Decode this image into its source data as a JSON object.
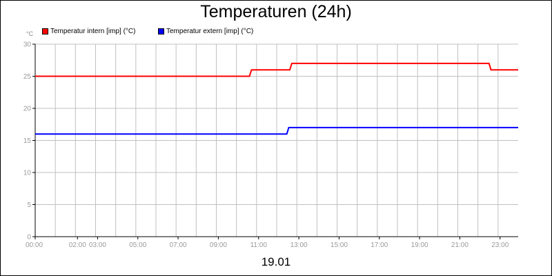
{
  "chart_data": {
    "type": "line",
    "title": "Temperaturen (24h)",
    "y_unit": "°C",
    "xlabel": "19.01",
    "ylim": [
      0,
      30
    ],
    "yticks": [
      0,
      5,
      10,
      15,
      20,
      25,
      30
    ],
    "xlim": [
      0,
      24
    ],
    "xticks": [
      {
        "x": 0,
        "label": "00:00"
      },
      {
        "x": 2.1,
        "label": "02:00"
      },
      {
        "x": 3.1,
        "label": "03:00"
      },
      {
        "x": 5.1,
        "label": "05:00"
      },
      {
        "x": 7.1,
        "label": "07:00"
      },
      {
        "x": 9.1,
        "label": "09:00"
      },
      {
        "x": 11.1,
        "label": "11:00"
      },
      {
        "x": 13.1,
        "label": "13:00"
      },
      {
        "x": 15.1,
        "label": "15:00"
      },
      {
        "x": 17.1,
        "label": "17:00"
      },
      {
        "x": 19.1,
        "label": "19:00"
      },
      {
        "x": 21.1,
        "label": "21:00"
      },
      {
        "x": 23.1,
        "label": "23:00"
      }
    ],
    "grid": true,
    "legend_position": "top-left",
    "series": [
      {
        "name": "Temperatur intern [imp] (°C)",
        "color": "#ff0000",
        "points": [
          [
            0,
            25
          ],
          [
            10.65,
            25
          ],
          [
            10.75,
            26
          ],
          [
            12.65,
            26
          ],
          [
            12.75,
            27
          ],
          [
            22.55,
            27
          ],
          [
            22.65,
            26
          ],
          [
            24,
            26
          ]
        ]
      },
      {
        "name": "Temperatur extern [imp] (°C)",
        "color": "#0000ff",
        "points": [
          [
            0,
            16
          ],
          [
            12.5,
            16
          ],
          [
            12.6,
            17
          ],
          [
            24,
            17
          ]
        ]
      }
    ]
  }
}
